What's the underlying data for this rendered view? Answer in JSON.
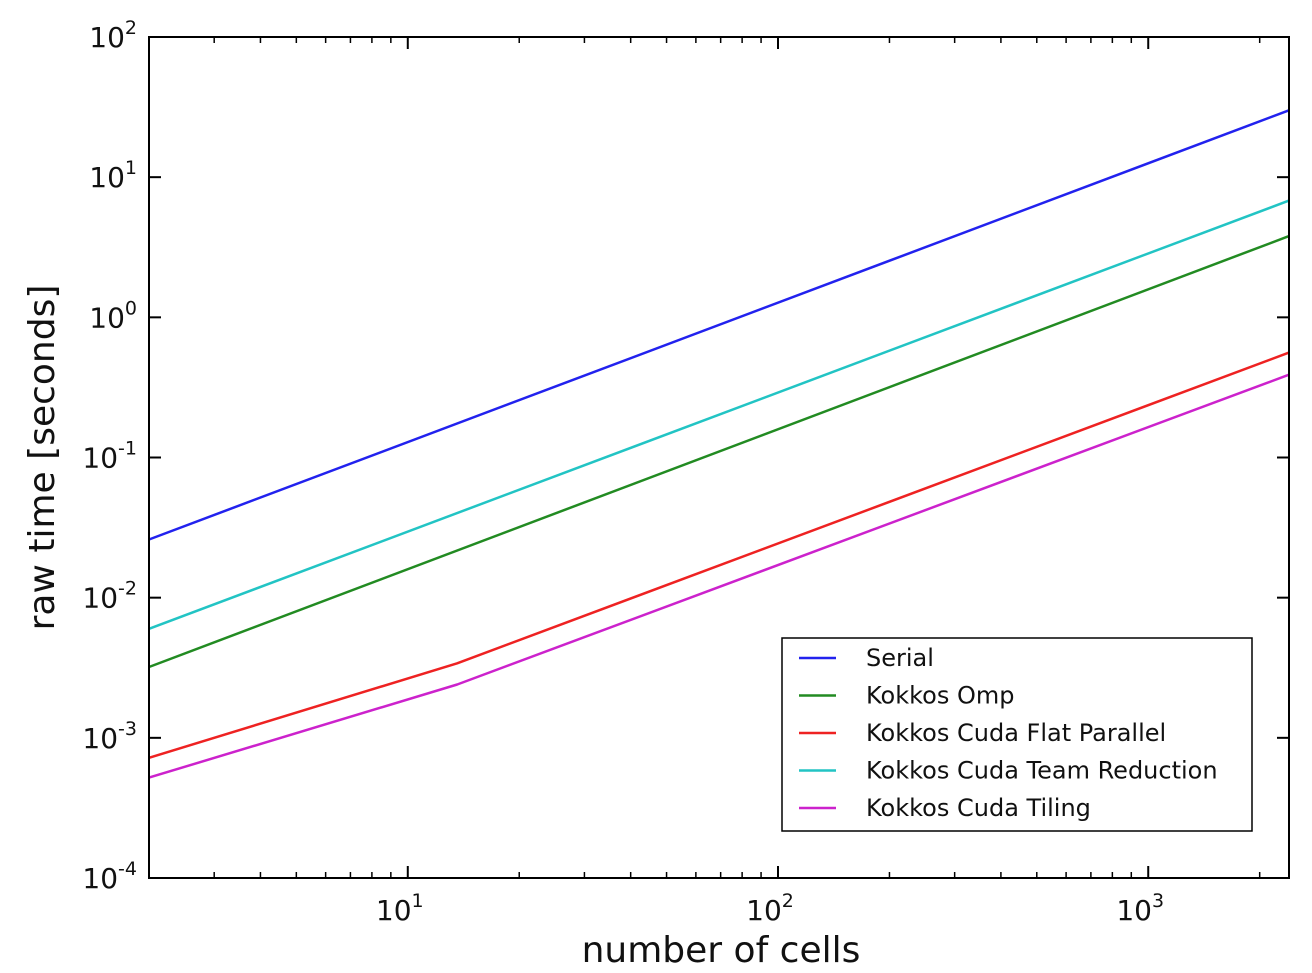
{
  "chart_data": {
    "type": "line",
    "title": "",
    "xlabel": "number of cells",
    "ylabel": "raw time [seconds]",
    "x_scale": "log",
    "y_scale": "log",
    "xlim": [
      2,
      2400
    ],
    "ylim": [
      0.0001,
      100
    ],
    "x_ticks": [
      {
        "value": 10,
        "base": "10",
        "exp": "1"
      },
      {
        "value": 100,
        "base": "10",
        "exp": "2"
      },
      {
        "value": 1000,
        "base": "10",
        "exp": "3"
      }
    ],
    "y_ticks": [
      {
        "value": 100,
        "base": "10",
        "exp": "2"
      },
      {
        "value": 10,
        "base": "10",
        "exp": "1"
      },
      {
        "value": 1,
        "base": "10",
        "exp": "0"
      },
      {
        "value": 0.1,
        "base": "10",
        "exp": "-1"
      },
      {
        "value": 0.01,
        "base": "10",
        "exp": "-2"
      },
      {
        "value": 0.001,
        "base": "10",
        "exp": "-3"
      },
      {
        "value": 0.0001,
        "base": "10",
        "exp": "-4"
      }
    ],
    "grid": false,
    "legend_position": "lower-right",
    "series": [
      {
        "name": "Serial",
        "color": "#2222ee",
        "points": [
          [
            2,
            0.026
          ],
          [
            2400,
            30
          ]
        ]
      },
      {
        "name": "Kokkos Omp",
        "color": "#228b22",
        "points": [
          [
            2,
            0.0032
          ],
          [
            2400,
            3.8
          ]
        ]
      },
      {
        "name": "Kokkos Cuda Flat Parallel",
        "color": "#ee2222",
        "points": [
          [
            2,
            0.00072
          ],
          [
            13.6,
            0.0034
          ],
          [
            2400,
            0.56
          ]
        ]
      },
      {
        "name": "Kokkos Cuda Team Reduction",
        "color": "#22c4c4",
        "points": [
          [
            2,
            0.006
          ],
          [
            2400,
            6.8
          ]
        ]
      },
      {
        "name": "Kokkos Cuda Tiling",
        "color": "#cc22cc",
        "points": [
          [
            2,
            0.00052
          ],
          [
            13.6,
            0.0024
          ],
          [
            2400,
            0.39
          ]
        ]
      }
    ]
  }
}
